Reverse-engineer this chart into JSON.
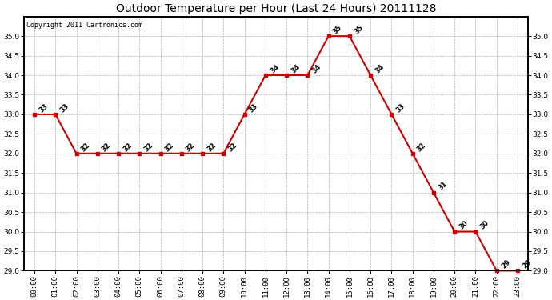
{
  "title": "Outdoor Temperature per Hour (Last 24 Hours) 20111128",
  "copyright_text": "Copyright 2011 Cartronics.com",
  "hours": [
    "00:00",
    "01:00",
    "02:00",
    "03:00",
    "04:00",
    "05:00",
    "06:00",
    "07:00",
    "08:00",
    "09:00",
    "10:00",
    "11:00",
    "12:00",
    "13:00",
    "14:00",
    "15:00",
    "16:00",
    "17:00",
    "18:00",
    "19:00",
    "20:00",
    "21:00",
    "22:00",
    "23:00"
  ],
  "temps": [
    33,
    33,
    32,
    32,
    32,
    32,
    32,
    32,
    32,
    32,
    33,
    34,
    34,
    34,
    35,
    35,
    34,
    33,
    32,
    31,
    30,
    30,
    29,
    29
  ],
  "line_color": "#cc0000",
  "marker": "s",
  "marker_size": 3,
  "line_width": 1.5,
  "bg_color": "#ffffff",
  "grid_color": "#aaaaaa",
  "ylim_min": 29.0,
  "ylim_max": 35.5,
  "yticks": [
    29.0,
    29.5,
    30.0,
    30.5,
    31.0,
    31.5,
    32.0,
    32.5,
    33.0,
    33.5,
    34.0,
    34.5,
    35.0
  ],
  "title_fontsize": 10,
  "label_fontsize": 6.5,
  "annotation_fontsize": 6,
  "copyright_fontsize": 6
}
